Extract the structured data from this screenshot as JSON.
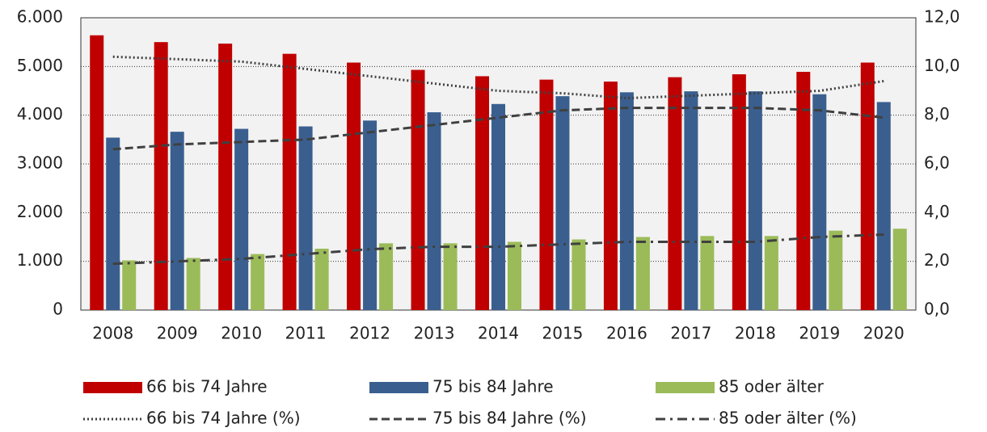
{
  "chart_data": {
    "type": "bar",
    "categories": [
      "2008",
      "2009",
      "2010",
      "2011",
      "2012",
      "2013",
      "2014",
      "2015",
      "2016",
      "2017",
      "2018",
      "2019",
      "2020"
    ],
    "series": [
      {
        "name": "66 bis 74 Jahre",
        "color": "#c00000",
        "type": "bar",
        "values": [
          5640,
          5500,
          5470,
          5260,
          5080,
          4930,
          4800,
          4730,
          4690,
          4780,
          4840,
          4890,
          5080
        ]
      },
      {
        "name": "75 bis 84 Jahre",
        "color": "#3a5f8f",
        "type": "bar",
        "values": [
          3540,
          3660,
          3720,
          3770,
          3890,
          4060,
          4230,
          4390,
          4470,
          4490,
          4490,
          4430,
          4270
        ]
      },
      {
        "name": "85 oder älter",
        "color": "#9bbb59",
        "type": "bar",
        "values": [
          1020,
          1070,
          1150,
          1260,
          1370,
          1370,
          1400,
          1450,
          1500,
          1520,
          1520,
          1630,
          1670
        ]
      },
      {
        "name": "66 bis 74 Jahre (%)",
        "color": "#404040",
        "type": "line",
        "dash": "dotted",
        "axis": "y2",
        "values": [
          10.4,
          10.3,
          10.2,
          9.9,
          9.6,
          9.3,
          9.0,
          8.9,
          8.7,
          8.8,
          8.9,
          9.0,
          9.4
        ]
      },
      {
        "name": "75 bis 84 Jahre (%)",
        "color": "#404040",
        "type": "line",
        "dash": "dashed",
        "axis": "y2",
        "values": [
          6.6,
          6.8,
          6.9,
          7.0,
          7.3,
          7.6,
          7.9,
          8.2,
          8.3,
          8.3,
          8.3,
          8.2,
          7.9
        ]
      },
      {
        "name": "85 oder älter (%)",
        "color": "#404040",
        "type": "line",
        "dash": "dashdot",
        "axis": "y2",
        "values": [
          1.9,
          2.0,
          2.1,
          2.3,
          2.5,
          2.6,
          2.6,
          2.7,
          2.8,
          2.8,
          2.8,
          3.0,
          3.1
        ]
      }
    ],
    "ylim": [
      0,
      6000
    ],
    "yticks": [
      0,
      {
        "value": 1000,
        "label": "1.000"
      },
      {
        "value": 2000,
        "label": "2.000"
      },
      {
        "value": 3000,
        "label": "3.000"
      },
      {
        "value": 4000,
        "label": "4.000"
      },
      {
        "value": 5000,
        "label": "5.000"
      },
      {
        "value": 6000,
        "label": "6.000"
      }
    ],
    "y2lim": [
      0,
      12
    ],
    "y2ticks": [
      {
        "value": 0,
        "label": "0,0"
      },
      {
        "value": 2,
        "label": "2,0"
      },
      {
        "value": 4,
        "label": "4,0"
      },
      {
        "value": 6,
        "label": "6,0"
      },
      {
        "value": 8,
        "label": "8,0"
      },
      {
        "value": 10,
        "label": "10,0"
      },
      {
        "value": 12,
        "label": "12,0"
      }
    ],
    "grid": true,
    "legend": "bottom"
  }
}
